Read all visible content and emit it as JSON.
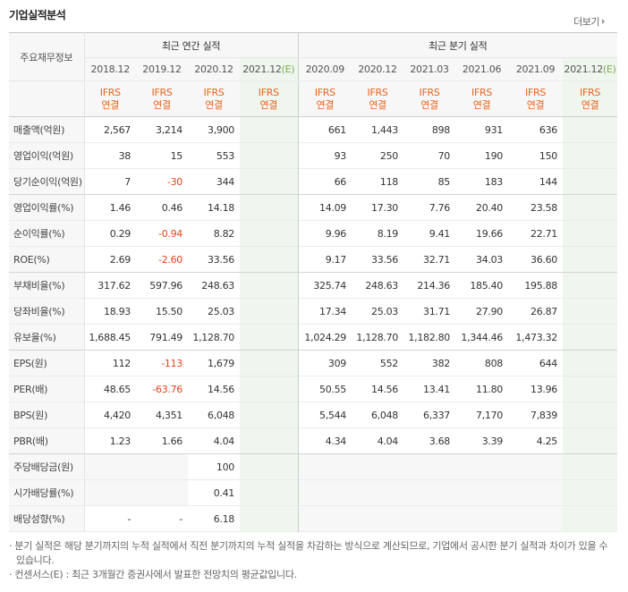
{
  "header": {
    "title": "기업실적분석",
    "more": "더보기"
  },
  "table": {
    "row_head_label": "주요재무정보",
    "annual_label": "최근 연간 실적",
    "quarter_label": "최근 분기 실적",
    "periods": [
      "2018.12",
      "2019.12",
      "2020.12",
      "2021.12",
      "2020.09",
      "2020.12",
      "2021.03",
      "2021.06",
      "2021.09",
      "2021.12"
    ],
    "est_mark": "(E)",
    "ifrs_top": "IFRS",
    "ifrs_bottom": "연결",
    "rows": [
      {
        "label": "매출액(억원)",
        "values": [
          "2,567",
          "3,214",
          "3,900",
          "",
          "661",
          "1,443",
          "898",
          "931",
          "636",
          ""
        ]
      },
      {
        "label": "영업이익(억원)",
        "values": [
          "38",
          "15",
          "553",
          "",
          "93",
          "250",
          "70",
          "190",
          "150",
          ""
        ]
      },
      {
        "label": "당기순이익(억원)",
        "values": [
          "7",
          "-30",
          "344",
          "",
          "66",
          "118",
          "85",
          "183",
          "144",
          ""
        ]
      },
      {
        "label": "영업이익률(%)",
        "values": [
          "1.46",
          "0.46",
          "14.18",
          "",
          "14.09",
          "17.30",
          "7.76",
          "20.40",
          "23.58",
          ""
        ]
      },
      {
        "label": "순이익률(%)",
        "values": [
          "0.29",
          "-0.94",
          "8.82",
          "",
          "9.96",
          "8.19",
          "9.41",
          "19.66",
          "22.71",
          ""
        ]
      },
      {
        "label": "ROE(%)",
        "values": [
          "2.69",
          "-2.60",
          "33.56",
          "",
          "9.17",
          "33.56",
          "32.71",
          "34.03",
          "36.60",
          ""
        ]
      },
      {
        "label": "부채비율(%)",
        "values": [
          "317.62",
          "597.96",
          "248.63",
          "",
          "325.74",
          "248.63",
          "214.36",
          "185.40",
          "195.88",
          ""
        ]
      },
      {
        "label": "당좌비율(%)",
        "values": [
          "18.93",
          "15.50",
          "25.03",
          "",
          "17.34",
          "25.03",
          "31.71",
          "27.90",
          "26.87",
          ""
        ]
      },
      {
        "label": "유보율(%)",
        "values": [
          "1,688.45",
          "791.49",
          "1,128.70",
          "",
          "1,024.29",
          "1,128.70",
          "1,182.80",
          "1,344.46",
          "1,473.32",
          ""
        ]
      },
      {
        "label": "EPS(원)",
        "values": [
          "112",
          "-113",
          "1,679",
          "",
          "309",
          "552",
          "382",
          "808",
          "644",
          ""
        ]
      },
      {
        "label": "PER(배)",
        "values": [
          "48.65",
          "-63.76",
          "14.56",
          "",
          "50.55",
          "14.56",
          "13.41",
          "11.80",
          "13.96",
          ""
        ]
      },
      {
        "label": "BPS(원)",
        "values": [
          "4,420",
          "4,351",
          "6,048",
          "",
          "5,544",
          "6,048",
          "6,337",
          "7,170",
          "7,839",
          ""
        ]
      },
      {
        "label": "PBR(배)",
        "values": [
          "1.23",
          "1.66",
          "4.04",
          "",
          "4.34",
          "4.04",
          "3.68",
          "3.39",
          "4.25",
          ""
        ]
      },
      {
        "label": "주당배당금(원)",
        "values": [
          "",
          "",
          "100",
          "",
          "",
          "",
          "",
          "",
          "",
          ""
        ]
      },
      {
        "label": "시가배당률(%)",
        "values": [
          "",
          "",
          "0.41",
          "",
          "",
          "",
          "",
          "",
          "",
          ""
        ]
      },
      {
        "label": "배당성향(%)",
        "values": [
          "-",
          "-",
          "6.18",
          "",
          "",
          "",
          "",
          "",
          "",
          ""
        ]
      }
    ]
  },
  "notes": [
    "· 분기 실적은 해당 분기까지의 누적 실적에서 직전 분기까지의 누적 실적을 차감하는 방식으로 계산되므로, 기업에서 공시한 분기 실적과 차이가 있을 수 있습니다.",
    "· 컨센서스(E) : 최근 3개월간 증권사에서 발표한 전망치의 평균값입니다."
  ]
}
